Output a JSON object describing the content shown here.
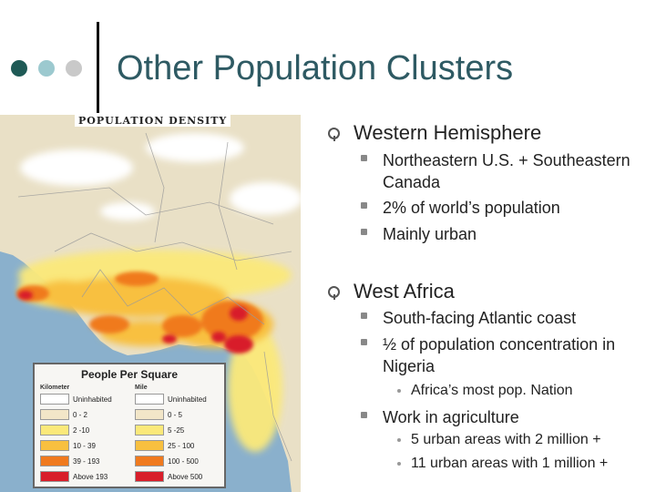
{
  "slide": {
    "title": "Other Population Clusters",
    "colors": {
      "title": "#2e5a63",
      "dot_dark": "#1f5a56",
      "dot_mid": "#9cc9cf",
      "dot_light": "#c9c9c9"
    }
  },
  "map": {
    "heading": "POPULATION DENSITY",
    "legend": {
      "title": "People Per Square",
      "col1_header": "Kilometer",
      "col2_header": "Mile",
      "rows": [
        {
          "km": "Uninhabited",
          "mile": "Uninhabited",
          "color": "#ffffff"
        },
        {
          "km": "0 - 2",
          "mile": "0 - 5",
          "color": "#f2e6c8"
        },
        {
          "km": "2 -10",
          "mile": "5 -25",
          "color": "#fbe97a"
        },
        {
          "km": "10 - 39",
          "mile": "25 - 100",
          "color": "#f8c040"
        },
        {
          "km": "39 - 193",
          "mile": "100 - 500",
          "color": "#f07a1e"
        },
        {
          "km": "Above 193",
          "mile": "Above 500",
          "color": "#d81e2a"
        }
      ]
    }
  },
  "content": {
    "sections": [
      {
        "heading": "Western Hemisphere",
        "items": [
          {
            "text": "Northeastern U.S. + Southeastern Canada"
          },
          {
            "text": "2% of world’s population"
          },
          {
            "text": "Mainly urban"
          }
        ]
      },
      {
        "heading": "West Africa",
        "items": [
          {
            "text": "South-facing Atlantic coast"
          },
          {
            "text": "½ of population concentration in Nigeria",
            "sub": [
              "Africa’s most pop. Nation"
            ]
          },
          {
            "text": "Work in agriculture",
            "sub": [
              "5 urban areas with 2 million +",
              "11 urban areas with 1 million +"
            ]
          }
        ]
      }
    ]
  }
}
